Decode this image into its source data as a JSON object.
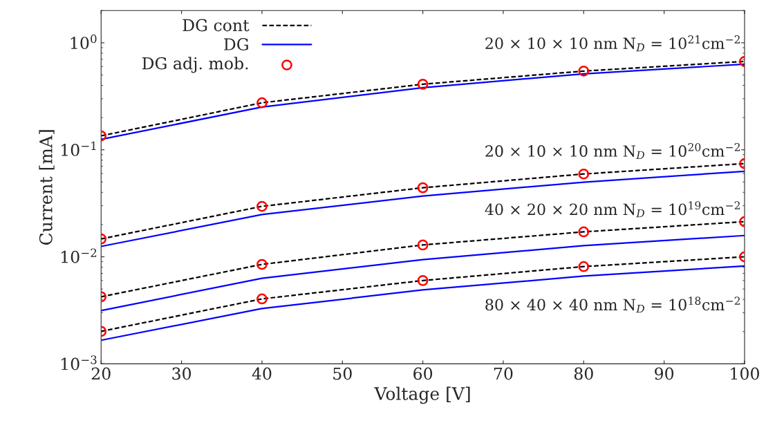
{
  "chart_data": {
    "type": "line",
    "xlabel": "Voltage [V]",
    "ylabel": "Current [mA]",
    "x": [
      20,
      40,
      60,
      80,
      100
    ],
    "xlim": [
      20,
      100
    ],
    "xticks": [
      20,
      30,
      40,
      50,
      60,
      70,
      80,
      90,
      100
    ],
    "ylim": [
      0.001,
      2
    ],
    "yticks": [
      {
        "value": 0.001,
        "label": "10$^{−3}$"
      },
      {
        "value": 0.01,
        "label": "10$^{−2}$"
      },
      {
        "value": 0.1,
        "label": "10$^{−1}$"
      },
      {
        "value": 1,
        "label": "10$^{0}$"
      }
    ],
    "log": "y",
    "grid": false,
    "legend": "top left",
    "series": [
      {
        "name": "DG cont",
        "type": "line",
        "line_style": "dashed",
        "marker": "none",
        "color": "#000000",
        "values": [
          0.135,
          0.275,
          0.41,
          0.544,
          0.67
        ]
      },
      {
        "name": "DG",
        "type": "line",
        "line_style": "solid",
        "marker": "none",
        "color": "#0000ff",
        "values": [
          0.125,
          0.251,
          0.381,
          0.513,
          0.631
        ]
      },
      {
        "name": "DG adj. mob.",
        "type": "scatter",
        "marker": "circle",
        "color": "#ff0000",
        "values": [
          0.135,
          0.275,
          0.41,
          0.544,
          0.67
        ]
      },
      {
        "type": "line",
        "line_style": "dashed",
        "marker": "none",
        "color": "#000000",
        "values": [
          0.0147,
          0.0296,
          0.0442,
          0.0594,
          0.0743
        ]
      },
      {
        "type": "line",
        "line_style": "solid",
        "marker": "none",
        "color": "#0000ff",
        "values": [
          0.0125,
          0.0248,
          0.037,
          0.0498,
          0.063
        ]
      },
      {
        "type": "scatter",
        "marker": "circle",
        "color": "#ff0000",
        "values": [
          0.0147,
          0.0296,
          0.0442,
          0.0594,
          0.0743
        ]
      },
      {
        "type": "line",
        "line_style": "dashed",
        "marker": "none",
        "color": "#000000",
        "values": [
          0.00423,
          0.00849,
          0.0129,
          0.0171,
          0.0213
        ]
      },
      {
        "type": "line",
        "line_style": "solid",
        "marker": "none",
        "color": "#0000ff",
        "values": [
          0.00314,
          0.0063,
          0.0094,
          0.0127,
          0.0158
        ]
      },
      {
        "type": "scatter",
        "marker": "circle",
        "color": "#ff0000",
        "values": [
          0.00423,
          0.00849,
          0.0129,
          0.0171,
          0.0213
        ]
      },
      {
        "type": "line",
        "line_style": "dashed",
        "marker": "none",
        "color": "#000000",
        "values": [
          0.00201,
          0.00404,
          0.006,
          0.0081,
          0.01
        ]
      },
      {
        "type": "line",
        "line_style": "solid",
        "marker": "none",
        "color": "#0000ff",
        "values": [
          0.00166,
          0.00328,
          0.0049,
          0.0066,
          0.0082
        ]
      },
      {
        "type": "scatter",
        "marker": "circle",
        "color": "#ff0000",
        "values": [
          0.00201,
          0.00404,
          0.006,
          0.0081,
          0.01
        ]
      }
    ],
    "annotations": [
      "20 × 10 × 10 nm N$_{D}$ = 10$^{21}$cm$^{−2}$",
      "20 × 10 × 10 nm N$_{D}$ = 10$^{20}$cm$^{−2}$",
      "40 × 20 × 20 nm N$_{D}$ = 10$^{19}$cm$^{−2}$",
      "80 × 40 × 40 nm N$_{D}$ = 10$^{18}$cm$^{−2}$"
    ]
  }
}
